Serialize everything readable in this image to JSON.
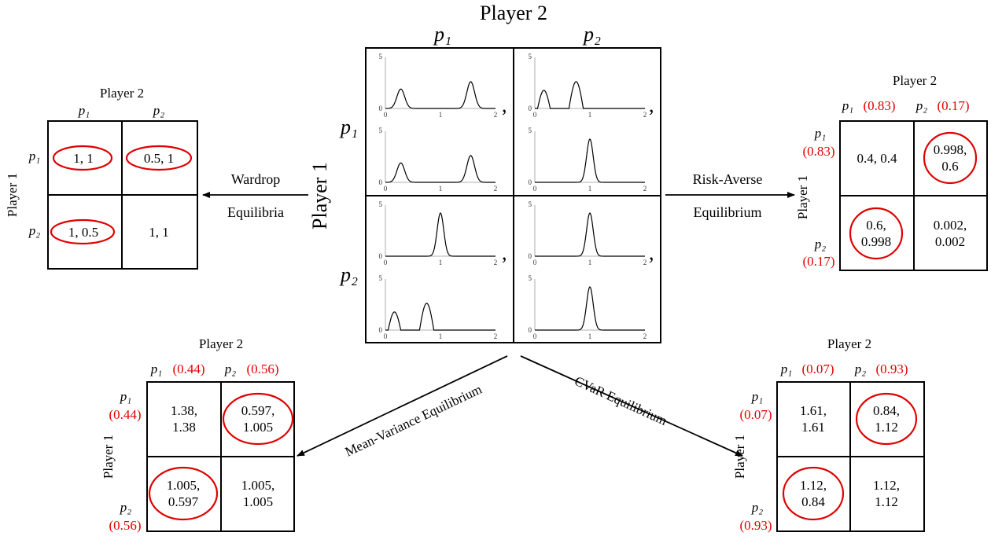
{
  "center": {
    "player2": "Player 2",
    "player1": "Player 1",
    "col_labels": [
      "p₁",
      "p₂"
    ],
    "row_labels": [
      "p₁",
      "p₂"
    ],
    "comma": ",",
    "y_tick_top": "5",
    "y_tick_zero": "0",
    "x_ticks": [
      "0",
      "1",
      "2"
    ]
  },
  "arrows": {
    "wardrop_line1": "Wardrop",
    "wardrop_line2": "Equilibria",
    "risk_line1": "Risk-Averse",
    "risk_line2": "Equilibrium",
    "mean_variance": "Mean-Variance Equilibrium",
    "cvar": "CVaR Equilibrium"
  },
  "wardrop": {
    "player2": "Player 2",
    "player1": "Player 1",
    "col_labels": [
      "p₁",
      "p₂"
    ],
    "row_labels": [
      "p₁",
      "p₂"
    ],
    "cells": [
      [
        "1, 1",
        "0.5, 1"
      ],
      [
        "1, 0.5",
        "1, 1"
      ]
    ]
  },
  "risk_averse": {
    "player2": "Player 2",
    "player1": "Player 1",
    "col_labels": [
      "p₁",
      "p₂"
    ],
    "col_probs": [
      "(0.83)",
      "(0.17)"
    ],
    "row_labels": [
      "p₁",
      "p₂"
    ],
    "row_probs": [
      "(0.83)",
      "(0.17)"
    ],
    "cells": [
      [
        [
          "0.4, 0.4"
        ],
        [
          "0.998,",
          "0.6"
        ]
      ],
      [
        [
          "0.6,",
          "0.998"
        ],
        [
          "0.002,",
          "0.002"
        ]
      ]
    ]
  },
  "mean_variance_table": {
    "player2": "Player 2",
    "player1": "Player 1",
    "col_labels": [
      "p₁",
      "p₂"
    ],
    "col_probs": [
      "(0.44)",
      "(0.56)"
    ],
    "row_labels": [
      "p₁",
      "p₂"
    ],
    "row_probs": [
      "(0.44)",
      "(0.56)"
    ],
    "cells": [
      [
        [
          "1.38,",
          "1.38"
        ],
        [
          "0.597,",
          "1.005"
        ]
      ],
      [
        [
          "1.005,",
          "0.597"
        ],
        [
          "1.005,",
          "1.005"
        ]
      ]
    ]
  },
  "cvar_table": {
    "player2": "Player 2",
    "player1": "Player 1",
    "col_labels": [
      "p₁",
      "p₂"
    ],
    "col_probs": [
      "(0.07)",
      "(0.93)"
    ],
    "row_labels": [
      "p₁",
      "p₂"
    ],
    "row_probs": [
      "(0.07)",
      "(0.93)"
    ],
    "cells": [
      [
        [
          "1.61,",
          "1.61"
        ],
        [
          "0.84,",
          "1.12"
        ]
      ],
      [
        [
          "1.12,",
          "0.84"
        ],
        [
          "1.12,",
          "1.12"
        ]
      ]
    ]
  },
  "colors": {
    "highlight": "#e00000",
    "line": "#000000"
  }
}
